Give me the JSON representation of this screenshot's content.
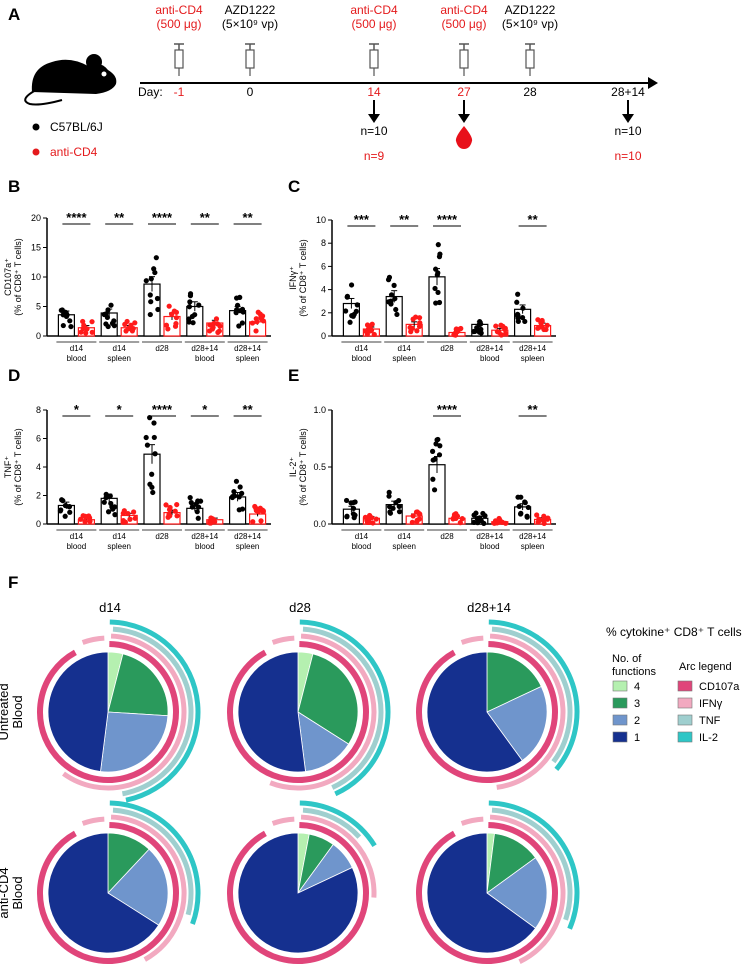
{
  "colors": {
    "black": "#000000",
    "red": "#e41a1c",
    "untreated_marker": "#000000",
    "cd4_marker": "#ff1a1a",
    "fn4": "#b5f0b0",
    "fn3": "#2a9a5c",
    "fn2": "#6f95cc",
    "fn1": "#15308f",
    "arc_cd107a": "#e0457a",
    "arc_ifng": "#f2a9c0",
    "arc_tnf": "#9fcfcf",
    "arc_il2": "#2ec6c6"
  },
  "panelA": {
    "letter": "A",
    "day_label": "Day:",
    "events": [
      {
        "day": "-1",
        "line1": "anti-CD4",
        "line2": "(500 μg)",
        "color": "red",
        "syringe": true
      },
      {
        "day": "0",
        "line1": "AZD1222",
        "line2": "(5×10⁹ vp)",
        "color": "black",
        "syringe": true
      },
      {
        "day": "14",
        "line1": "anti-CD4",
        "line2": "(500 μg)",
        "color": "red",
        "syringe": true,
        "sample": true
      },
      {
        "day": "27",
        "line1": "anti-CD4",
        "line2": "(500 μg)",
        "color": "red",
        "syringe": true,
        "blood": true
      },
      {
        "day": "28",
        "line1": "AZD1222",
        "line2": "(5×10⁹ vp)",
        "color": "black",
        "syringe": true
      },
      {
        "day": "28+14",
        "line1": "",
        "line2": "",
        "color": "black",
        "syringe": false,
        "sample": true
      }
    ],
    "legend": [
      {
        "label": "C57BL/6J",
        "color": "black"
      },
      {
        "label": "anti-CD4",
        "color": "red"
      }
    ],
    "counts": [
      {
        "black": "n=10",
        "red": "n=9"
      },
      {
        "black": "n=10",
        "red": "n=10"
      }
    ]
  },
  "chart_data": [
    {
      "panel": "B",
      "type": "bar",
      "ylabel_main": "CD107a⁺",
      "ylabel_sub": "(% of CD8⁺ T cells)",
      "ylim": [
        0,
        20
      ],
      "yticks": [
        "0",
        "5",
        "10",
        "15",
        "20"
      ],
      "groups": [
        {
          "line1": "d14",
          "line2": "blood",
          "means": [
            3.6,
            1.4
          ],
          "sig": "****"
        },
        {
          "line1": "d14",
          "line2": "spleen",
          "means": [
            3.9,
            1.4
          ],
          "sig": "**"
        },
        {
          "line1": "d28",
          "line2": "",
          "means": [
            8.8,
            3.3
          ],
          "sig": "****"
        },
        {
          "line1": "d28+14",
          "line2": "blood",
          "means": [
            5.0,
            2.2
          ],
          "sig": "**"
        },
        {
          "line1": "d28+14",
          "line2": "spleen",
          "means": [
            4.3,
            2.4
          ],
          "sig": "**"
        }
      ],
      "series": [
        {
          "name": "C57BL/6J"
        },
        {
          "name": "anti-CD4"
        }
      ]
    },
    {
      "panel": "C",
      "type": "bar",
      "ylabel_main": "IFNγ⁺",
      "ylabel_sub": "(% of CD8⁺ T cells)",
      "ylim": [
        0,
        10
      ],
      "yticks": [
        "0",
        "2",
        "4",
        "6",
        "8",
        "10"
      ],
      "groups": [
        {
          "line1": "d14",
          "line2": "blood",
          "means": [
            2.8,
            0.6
          ],
          "sig": "***"
        },
        {
          "line1": "d14",
          "line2": "spleen",
          "means": [
            3.4,
            1.0
          ],
          "sig": "**"
        },
        {
          "line1": "d28",
          "line2": "",
          "means": [
            5.1,
            0.3
          ],
          "sig": "****"
        },
        {
          "line1": "d28+14",
          "line2": "blood",
          "means": [
            1.0,
            0.5
          ],
          "sig": ""
        },
        {
          "line1": "d28+14",
          "line2": "spleen",
          "means": [
            2.3,
            0.9
          ],
          "sig": "**"
        }
      ],
      "series": [
        {
          "name": "C57BL/6J"
        },
        {
          "name": "anti-CD4"
        }
      ]
    },
    {
      "panel": "D",
      "type": "bar",
      "ylabel_main": "TNF⁺",
      "ylabel_sub": "(% of CD8⁺ T cells)",
      "ylim": [
        0,
        8
      ],
      "yticks": [
        "0",
        "2",
        "4",
        "6",
        "8"
      ],
      "groups": [
        {
          "line1": "d14",
          "line2": "blood",
          "means": [
            1.3,
            0.3
          ],
          "sig": "*"
        },
        {
          "line1": "d14",
          "line2": "spleen",
          "means": [
            1.8,
            0.6
          ],
          "sig": "*"
        },
        {
          "line1": "d28",
          "line2": "",
          "means": [
            4.9,
            0.8
          ],
          "sig": "****"
        },
        {
          "line1": "d28+14",
          "line2": "blood",
          "means": [
            1.1,
            0.3
          ],
          "sig": "*"
        },
        {
          "line1": "d28+14",
          "line2": "spleen",
          "means": [
            1.9,
            0.7
          ],
          "sig": "**"
        }
      ],
      "series": [
        {
          "name": "C57BL/6J"
        },
        {
          "name": "anti-CD4"
        }
      ]
    },
    {
      "panel": "E",
      "type": "bar",
      "ylabel_main": "IL-2⁺",
      "ylabel_sub": "(% of CD8⁺ T cells)",
      "ylim": [
        0,
        1.0
      ],
      "yticks": [
        "0.0",
        "0.5",
        "1.0"
      ],
      "groups": [
        {
          "line1": "d14",
          "line2": "blood",
          "means": [
            0.13,
            0.05
          ],
          "sig": ""
        },
        {
          "line1": "d14",
          "line2": "spleen",
          "means": [
            0.17,
            0.07
          ],
          "sig": ""
        },
        {
          "line1": "d28",
          "line2": "",
          "means": [
            0.52,
            0.05
          ],
          "sig": "****"
        },
        {
          "line1": "d28+14",
          "line2": "blood",
          "means": [
            0.05,
            0.02
          ],
          "sig": ""
        },
        {
          "line1": "d28+14",
          "line2": "spleen",
          "means": [
            0.15,
            0.04
          ],
          "sig": "**"
        }
      ],
      "series": [
        {
          "name": "C57BL/6J"
        },
        {
          "name": "anti-CD4"
        }
      ]
    },
    {
      "panel": "F",
      "type": "pie",
      "title": "% cytokine⁺ CD8⁺ T cells",
      "columns": [
        "d14",
        "d28",
        "d28+14"
      ],
      "rows": [
        {
          "line1": "Untreated",
          "line2": "Blood"
        },
        {
          "line1": "anti-CD4",
          "line2": "Blood"
        }
      ],
      "pies": [
        [
          [
            0.04,
            0.22,
            0.26,
            0.48
          ],
          [
            0.04,
            0.3,
            0.14,
            0.52
          ],
          [
            0.0,
            0.18,
            0.22,
            0.6
          ]
        ],
        [
          [
            0.0,
            0.12,
            0.22,
            0.66
          ],
          [
            0.03,
            0.07,
            0.08,
            0.82
          ],
          [
            0.02,
            0.13,
            0.2,
            0.65
          ]
        ]
      ],
      "fn_legend_title1": "No. of",
      "fn_legend_title2": "functions",
      "fn_legend": [
        "4",
        "3",
        "2",
        "1"
      ],
      "arc_legend_title": "Arc legend",
      "arc_legend": [
        "CD107a",
        "IFNγ",
        "TNF",
        "IL-2"
      ]
    }
  ]
}
